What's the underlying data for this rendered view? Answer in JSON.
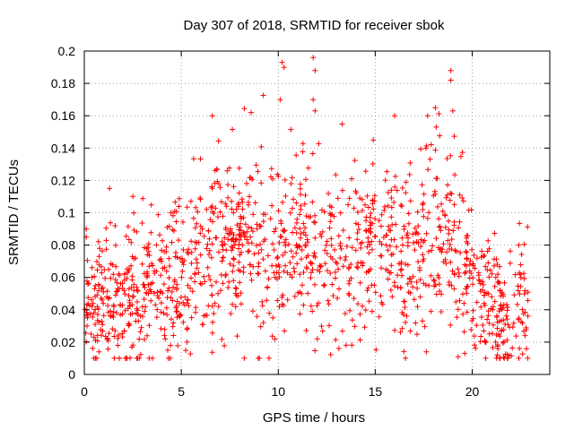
{
  "chart_data": {
    "type": "scatter",
    "title": "Day 307 of 2018, SRMTID for receiver sbok",
    "xlabel": "GPS time / hours",
    "ylabel": "SRMTID / TECUs",
    "xlim": [
      0,
      24
    ],
    "ylim": [
      0,
      0.2
    ],
    "xticks": [
      "0",
      "5",
      "10",
      "15",
      "20"
    ],
    "xtick_values": [
      0,
      5,
      10,
      15,
      20
    ],
    "yticks": [
      "0",
      "0.02",
      "0.04",
      "0.06",
      "0.08",
      "0.1",
      "0.12",
      "0.14",
      "0.16",
      "0.18",
      "0.2"
    ],
    "ytick_values": [
      0,
      0.02,
      0.04,
      0.06,
      0.08,
      0.1,
      0.12,
      0.14,
      0.16,
      0.18,
      0.2
    ],
    "grid": true,
    "marker": "+",
    "color": "#ff0000",
    "trend": {
      "x": [
        0,
        1,
        2,
        3,
        4,
        5,
        6,
        7,
        8,
        9,
        10,
        11,
        12,
        13,
        14,
        15,
        16,
        17,
        18,
        19,
        20,
        21,
        22,
        23
      ],
      "y": [
        0.045,
        0.045,
        0.042,
        0.05,
        0.055,
        0.055,
        0.075,
        0.075,
        0.08,
        0.085,
        0.075,
        0.085,
        0.075,
        0.07,
        0.08,
        0.085,
        0.075,
        0.07,
        0.1,
        0.08,
        0.055,
        0.04,
        0.035,
        0.04
      ]
    },
    "notable_points": [
      {
        "x": 0.1,
        "y": 0.09
      },
      {
        "x": 1.3,
        "y": 0.115
      },
      {
        "x": 4.3,
        "y": 0.015
      },
      {
        "x": 5.3,
        "y": 0.02
      },
      {
        "x": 6.6,
        "y": 0.16
      },
      {
        "x": 8.6,
        "y": 0.162
      },
      {
        "x": 10.2,
        "y": 0.193
      },
      {
        "x": 10.3,
        "y": 0.19
      },
      {
        "x": 10.1,
        "y": 0.17
      },
      {
        "x": 11.8,
        "y": 0.196
      },
      {
        "x": 11.9,
        "y": 0.188
      },
      {
        "x": 11.8,
        "y": 0.17
      },
      {
        "x": 11.9,
        "y": 0.163
      },
      {
        "x": 14.9,
        "y": 0.145
      },
      {
        "x": 16.0,
        "y": 0.16
      },
      {
        "x": 17.7,
        "y": 0.16
      },
      {
        "x": 18.1,
        "y": 0.165
      },
      {
        "x": 18.9,
        "y": 0.188
      },
      {
        "x": 18.9,
        "y": 0.182
      },
      {
        "x": 19.0,
        "y": 0.163
      },
      {
        "x": 21.3,
        "y": 0.012
      },
      {
        "x": 22.4,
        "y": 0.08
      },
      {
        "x": 2.2,
        "y": 0.01
      }
    ],
    "n_points": 1400
  }
}
